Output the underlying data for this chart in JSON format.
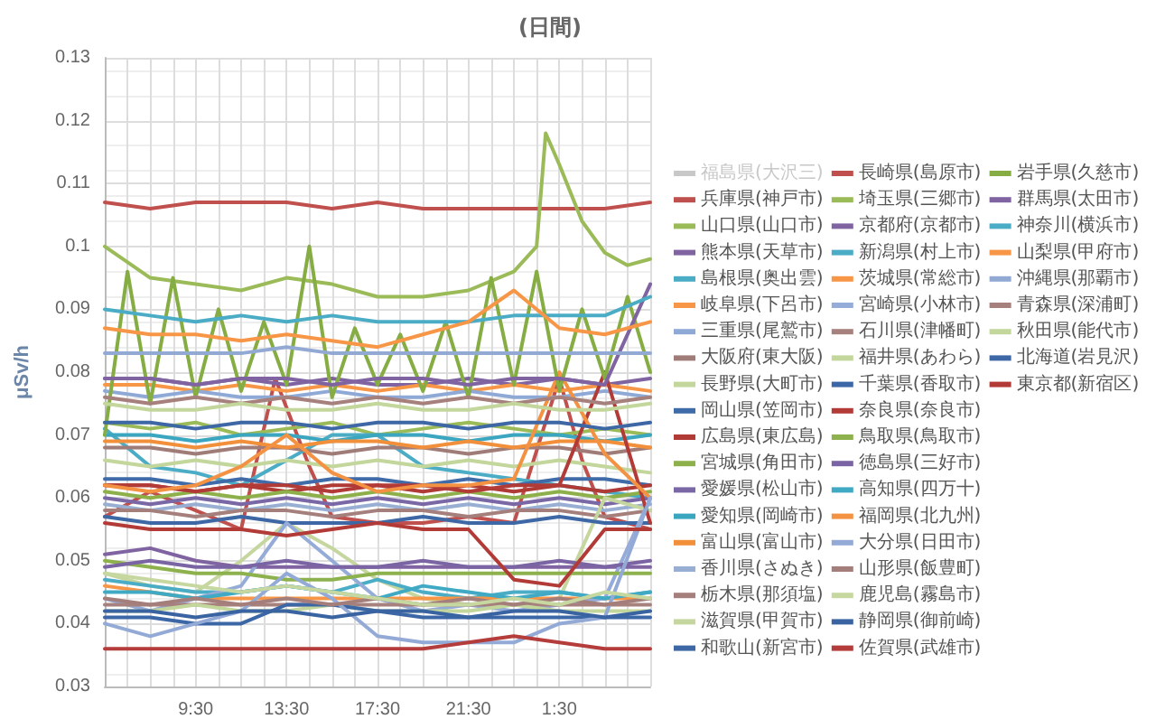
{
  "chart_data": {
    "type": "line",
    "title": "(日間)",
    "ylabel": "μSv/h",
    "marker": "none",
    "grid": true,
    "legend": "right",
    "x": [
      "--01-01T05:30",
      "--01-01T07:30",
      "--01-01T09:30",
      "--01-01T11:30",
      "--01-01T13:30",
      "--01-01T15:30",
      "--01-01T17:30",
      "--01-01T19:30",
      "--01-01T21:30",
      "--01-01T23:30",
      "--01-02T01:30",
      "--01-02T03:30",
      "--01-02T05:30"
    ],
    "xlim": [
      "--01-01T05:30",
      "--01-02T05:30"
    ],
    "xticks": [
      {
        "value": "--01-01T05:30",
        "label": null
      },
      {
        "value": "--01-01T06:30",
        "label": null
      },
      {
        "value": "--01-01T07:30",
        "label": null
      },
      {
        "value": "--01-01T08:30",
        "label": null
      },
      {
        "value": "--01-01T09:30",
        "label": "9:30"
      },
      {
        "value": "--01-01T10:30",
        "label": null
      },
      {
        "value": "--01-01T11:30",
        "label": null
      },
      {
        "value": "--01-01T12:30",
        "label": null
      },
      {
        "value": "--01-01T13:30",
        "label": "13:30"
      },
      {
        "value": "--01-01T14:30",
        "label": null
      },
      {
        "value": "--01-01T15:30",
        "label": null
      },
      {
        "value": "--01-01T16:30",
        "label": null
      },
      {
        "value": "--01-01T17:30",
        "label": "17:30"
      },
      {
        "value": "--01-01T18:30",
        "label": null
      },
      {
        "value": "--01-01T19:30",
        "label": null
      },
      {
        "value": "--01-01T20:30",
        "label": null
      },
      {
        "value": "--01-01T21:30",
        "label": "21:30"
      },
      {
        "value": "--01-01T22:30",
        "label": null
      },
      {
        "value": "--01-01T23:30",
        "label": null
      },
      {
        "value": "--01-02T00:30",
        "label": null
      },
      {
        "value": "--01-02T01:30",
        "label": "1:30"
      },
      {
        "value": "--01-02T02:30",
        "label": null
      },
      {
        "value": "--01-02T03:30",
        "label": null
      },
      {
        "value": "--01-02T04:30",
        "label": null
      },
      {
        "value": "--01-02T05:30",
        "label": null
      }
    ],
    "ylim": [
      0.03,
      0.13
    ],
    "yticks": [
      0.03,
      0.04,
      0.05,
      0.06,
      0.07,
      0.08,
      0.09,
      0.1,
      0.11,
      0.12,
      0.13
    ],
    "series": [
      {
        "name": "福島県(大沢三)",
        "color": "#bfbfbf",
        "values": [
          null,
          null,
          null,
          null,
          null,
          null,
          null,
          null,
          null,
          null,
          null,
          null,
          null
        ]
      },
      {
        "name": "兵庫県(神戸市)",
        "color": "#c0504d",
        "x": [
          "--01-01T05:30",
          "--01-01T07:30",
          "--01-01T09:30",
          "--01-01T11:30",
          "--01-01T13:00",
          "--01-01T14:30",
          "--01-01T15:30",
          "--01-01T17:30",
          "--01-01T19:30",
          "--01-01T21:30",
          "--01-01T23:30",
          "--01-02T01:30",
          "--01-02T02:30",
          "--01-02T03:30",
          "--01-02T04:30",
          "--01-02T05:30"
        ],
        "values": [
          0.057,
          0.061,
          0.058,
          0.055,
          0.079,
          0.065,
          0.057,
          0.056,
          0.056,
          0.057,
          0.056,
          0.079,
          0.066,
          0.057,
          0.056,
          0.055
        ]
      },
      {
        "name": "山口県(山口市)",
        "color": "#9bbb59",
        "values": [
          0.072,
          0.071,
          0.072,
          0.07,
          0.071,
          0.072,
          0.07,
          0.071,
          0.072,
          0.071,
          0.07,
          0.071,
          0.07
        ]
      },
      {
        "name": "熊本県(天草市)",
        "color": "#8064a2",
        "values": [
          0.079,
          0.079,
          0.078,
          0.079,
          0.078,
          0.079,
          0.078,
          0.078,
          0.079,
          0.078,
          0.079,
          0.078,
          0.079
        ]
      },
      {
        "name": "島根県(奥出雲)",
        "color": "#4bacc6",
        "values": [
          0.071,
          0.065,
          0.064,
          0.062,
          0.066,
          0.07,
          0.07,
          0.065,
          0.064,
          0.063,
          0.062,
          0.061,
          0.06
        ]
      },
      {
        "name": "岐阜県(下呂市)",
        "color": "#f79646",
        "values": [
          0.078,
          0.078,
          0.077,
          0.078,
          0.077,
          0.078,
          0.077,
          0.078,
          0.077,
          0.078,
          0.077,
          0.078,
          0.077
        ]
      },
      {
        "name": "三重県(尾鷲市)",
        "color": "#8fa9d6",
        "values": [
          0.077,
          0.076,
          0.077,
          0.076,
          0.076,
          0.077,
          0.076,
          0.076,
          0.077,
          0.076,
          0.076,
          0.077,
          0.076
        ]
      },
      {
        "name": "大阪府(東大阪)",
        "color": "#a07c78",
        "values": [
          0.068,
          0.068,
          0.067,
          0.068,
          0.068,
          0.067,
          0.068,
          0.068,
          0.067,
          0.068,
          0.068,
          0.067,
          0.068
        ]
      },
      {
        "name": "長野県(大町市)",
        "color": "#c3d69b",
        "values": [
          0.066,
          0.065,
          0.066,
          0.065,
          0.066,
          0.065,
          0.066,
          0.065,
          0.066,
          0.065,
          0.066,
          0.065,
          0.064
        ]
      },
      {
        "name": "岡山県(笠岡市)",
        "color": "#3f6ba9",
        "values": [
          0.063,
          0.063,
          0.062,
          0.063,
          0.062,
          0.063,
          0.063,
          0.062,
          0.063,
          0.062,
          0.063,
          0.063,
          0.062
        ]
      },
      {
        "name": "広島県(東広島)",
        "color": "#b03a36",
        "values": [
          0.062,
          0.062,
          0.061,
          0.062,
          0.061,
          0.062,
          0.062,
          0.061,
          0.062,
          0.061,
          0.062,
          0.061,
          0.062
        ]
      },
      {
        "name": "宮城県(角田市)",
        "color": "#8eb04a",
        "values": [
          0.061,
          0.06,
          0.061,
          0.06,
          0.061,
          0.06,
          0.061,
          0.06,
          0.061,
          0.06,
          0.061,
          0.06,
          0.061
        ]
      },
      {
        "name": "愛媛県(松山市)",
        "color": "#7a68a6",
        "values": [
          0.06,
          0.059,
          0.06,
          0.059,
          0.06,
          0.059,
          0.06,
          0.059,
          0.06,
          0.059,
          0.06,
          0.059,
          0.06
        ]
      },
      {
        "name": "愛知県(岡崎市)",
        "color": "#3ba6c0",
        "values": [
          0.07,
          0.07,
          0.069,
          0.07,
          0.07,
          0.069,
          0.07,
          0.07,
          0.069,
          0.07,
          0.07,
          0.069,
          0.07
        ]
      },
      {
        "name": "富山県(富山市)",
        "color": "#f28f3b",
        "values": [
          0.069,
          0.069,
          0.068,
          0.069,
          0.068,
          0.069,
          0.069,
          0.068,
          0.069,
          0.068,
          0.069,
          0.069,
          0.068
        ]
      },
      {
        "name": "香川県(さぬき)",
        "color": "#98afd3",
        "values": [
          0.059,
          0.058,
          0.059,
          0.058,
          0.059,
          0.058,
          0.059,
          0.058,
          0.059,
          0.058,
          0.059,
          0.058,
          0.059
        ]
      },
      {
        "name": "栃木県(那須塩)",
        "color": "#a47f7c",
        "values": [
          0.058,
          0.058,
          0.057,
          0.058,
          0.058,
          0.057,
          0.058,
          0.058,
          0.057,
          0.058,
          0.058,
          0.057,
          0.058
        ]
      },
      {
        "name": "滋賀県(甲賀市)",
        "color": "#c5d69e",
        "values": [
          0.048,
          0.046,
          0.045,
          0.05,
          0.056,
          0.052,
          0.047,
          0.044,
          0.043,
          0.043,
          0.044,
          0.06,
          0.058
        ]
      },
      {
        "name": "和歌山(新宮市)",
        "color": "#3d68a5",
        "values": [
          0.057,
          0.056,
          0.056,
          0.057,
          0.056,
          0.056,
          0.056,
          0.057,
          0.056,
          0.056,
          0.057,
          0.056,
          0.056
        ]
      },
      {
        "name": "長崎県(島原市)",
        "color": "#c0504d",
        "values": [
          0.107,
          0.106,
          0.107,
          0.107,
          0.107,
          0.106,
          0.107,
          0.106,
          0.106,
          0.106,
          0.106,
          0.106,
          0.107
        ]
      },
      {
        "name": "埼玉県(三郷市)",
        "color": "#9bbb59",
        "x": [
          "--01-01T05:30",
          "--01-01T07:30",
          "--01-01T09:30",
          "--01-01T11:30",
          "--01-01T13:30",
          "--01-01T15:30",
          "--01-01T17:30",
          "--01-01T19:30",
          "--01-01T21:30",
          "--01-01T23:30",
          "--01-02T00:30",
          "--01-02T00:54",
          "--01-02T01:30",
          "--01-02T02:30",
          "--01-02T03:30",
          "--01-02T04:30",
          "--01-02T05:30"
        ],
        "values": [
          0.1,
          0.095,
          0.094,
          0.093,
          0.095,
          0.094,
          0.092,
          0.092,
          0.093,
          0.096,
          0.1,
          0.118,
          0.113,
          0.104,
          0.099,
          0.097,
          0.098
        ]
      },
      {
        "name": "京都府(京都市)",
        "color": "#8064a2",
        "values": [
          0.051,
          0.052,
          0.05,
          0.049,
          0.049,
          0.049,
          0.049,
          0.049,
          0.049,
          0.049,
          0.049,
          0.049,
          0.049
        ]
      },
      {
        "name": "新潟県(村上市)",
        "color": "#4bacc6",
        "values": [
          0.047,
          0.046,
          0.045,
          0.045,
          0.046,
          0.045,
          0.047,
          0.045,
          0.044,
          0.045,
          0.045,
          0.044,
          0.045
        ]
      },
      {
        "name": "茨城県(常総市)",
        "color": "#f79646",
        "values": [
          0.046,
          0.045,
          0.044,
          0.044,
          0.044,
          0.044,
          0.044,
          0.044,
          0.044,
          0.044,
          0.044,
          0.044,
          0.044
        ]
      },
      {
        "name": "宮崎県(小林市)",
        "color": "#95abd8",
        "values": [
          0.044,
          0.042,
          0.044,
          0.046,
          0.056,
          0.05,
          0.044,
          0.042,
          0.043,
          0.042,
          0.043,
          0.044,
          0.06
        ]
      },
      {
        "name": "石川県(津幡町)",
        "color": "#a7817d",
        "values": [
          0.043,
          0.043,
          0.043,
          0.043,
          0.043,
          0.043,
          0.043,
          0.043,
          0.043,
          0.043,
          0.043,
          0.043,
          0.043
        ]
      },
      {
        "name": "福井県(あわら)",
        "color": "#c3d69b",
        "values": [
          0.042,
          0.042,
          0.043,
          0.042,
          0.042,
          0.043,
          0.042,
          0.042,
          0.042,
          0.043,
          0.042,
          0.042,
          0.042
        ]
      },
      {
        "name": "千葉県(香取市)",
        "color": "#3c67a6",
        "values": [
          0.041,
          0.041,
          0.04,
          0.04,
          0.043,
          0.043,
          0.042,
          0.041,
          0.041,
          0.041,
          0.041,
          0.041,
          0.041
        ]
      },
      {
        "name": "奈良県(奈良市)",
        "color": "#b23b38",
        "values": [
          0.062,
          0.062,
          0.061,
          0.062,
          0.062,
          0.061,
          0.062,
          0.062,
          0.061,
          0.062,
          0.062,
          0.08,
          0.056
        ]
      },
      {
        "name": "鳥取県(鳥取市)",
        "color": "#8db24d",
        "values": [
          0.05,
          0.049,
          0.048,
          0.048,
          0.047,
          0.047,
          0.048,
          0.048,
          0.048,
          0.048,
          0.048,
          0.048,
          0.048
        ]
      },
      {
        "name": "徳島県(三好市)",
        "color": "#7b64a3",
        "values": [
          0.049,
          0.05,
          0.049,
          0.049,
          0.05,
          0.049,
          0.049,
          0.05,
          0.049,
          0.049,
          0.05,
          0.049,
          0.05
        ]
      },
      {
        "name": "高知県(四万十)",
        "color": "#40a9c4",
        "values": [
          0.045,
          0.045,
          0.044,
          0.045,
          0.046,
          0.045,
          0.044,
          0.046,
          0.045,
          0.044,
          0.045,
          0.044,
          0.045
        ]
      },
      {
        "name": "福岡県(北九州)",
        "color": "#f39243",
        "values": [
          0.062,
          0.061,
          0.062,
          0.065,
          0.07,
          0.064,
          0.061,
          0.062,
          0.062,
          0.063,
          0.08,
          0.067,
          0.06
        ]
      },
      {
        "name": "大分県(日田市)",
        "color": "#93aad6",
        "values": [
          0.04,
          0.038,
          0.04,
          0.042,
          0.048,
          0.044,
          0.038,
          0.037,
          0.037,
          0.037,
          0.04,
          0.041,
          0.06
        ]
      },
      {
        "name": "山形県(飯豊町)",
        "color": "#a47e7b",
        "values": [
          0.044,
          0.043,
          0.044,
          0.043,
          0.044,
          0.043,
          0.044,
          0.043,
          0.044,
          0.043,
          0.044,
          0.043,
          0.044
        ]
      },
      {
        "name": "鹿児島(霧島市)",
        "color": "#c6d8a0",
        "values": [
          0.048,
          0.047,
          0.046,
          0.045,
          0.046,
          0.045,
          0.044,
          0.043,
          0.043,
          0.044,
          0.043,
          0.045,
          0.044
        ]
      },
      {
        "name": "静岡県(御前崎)",
        "color": "#3a63a2",
        "values": [
          0.042,
          0.042,
          0.041,
          0.042,
          0.042,
          0.041,
          0.042,
          0.042,
          0.041,
          0.042,
          0.042,
          0.041,
          0.042
        ]
      },
      {
        "name": "佐賀県(武雄市)",
        "color": "#b43c3a",
        "values": [
          0.036,
          0.036,
          0.036,
          0.036,
          0.036,
          0.036,
          0.036,
          0.036,
          0.037,
          0.038,
          0.037,
          0.036,
          0.036
        ]
      },
      {
        "name": "岩手県(久慈市)",
        "color": "#86ad43",
        "x": [
          "--01-01T05:30",
          "--01-01T06:30",
          "--01-01T07:30",
          "--01-01T08:30",
          "--01-01T09:30",
          "--01-01T10:30",
          "--01-01T11:30",
          "--01-01T12:30",
          "--01-01T13:30",
          "--01-01T14:30",
          "--01-01T15:30",
          "--01-01T16:30",
          "--01-01T17:30",
          "--01-01T18:30",
          "--01-01T19:30",
          "--01-01T20:30",
          "--01-01T21:30",
          "--01-01T22:30",
          "--01-01T23:30",
          "--01-02T00:30",
          "--01-02T01:30",
          "--01-02T02:30",
          "--01-02T03:30",
          "--01-02T04:30",
          "--01-02T05:30"
        ],
        "values": [
          0.07,
          0.096,
          0.075,
          0.095,
          0.076,
          0.09,
          0.077,
          0.088,
          0.078,
          0.1,
          0.076,
          0.087,
          0.078,
          0.086,
          0.077,
          0.088,
          0.076,
          0.095,
          0.078,
          0.096,
          0.077,
          0.09,
          0.079,
          0.092,
          0.08
        ]
      },
      {
        "name": "群馬県(太田市)",
        "color": "#8064a2",
        "values": [
          0.079,
          0.079,
          0.078,
          0.079,
          0.079,
          0.078,
          0.079,
          0.079,
          0.078,
          0.079,
          0.079,
          0.078,
          0.094
        ]
      },
      {
        "name": "神奈川(横浜市)",
        "color": "#4bacc6",
        "values": [
          0.09,
          0.089,
          0.088,
          0.089,
          0.088,
          0.089,
          0.088,
          0.088,
          0.088,
          0.089,
          0.089,
          0.089,
          0.092
        ]
      },
      {
        "name": "山梨県(甲府市)",
        "color": "#f79646",
        "values": [
          0.087,
          0.086,
          0.086,
          0.085,
          0.086,
          0.085,
          0.084,
          0.086,
          0.088,
          0.093,
          0.087,
          0.086,
          0.088
        ]
      },
      {
        "name": "沖縄県(那覇市)",
        "color": "#92a9d4",
        "values": [
          0.083,
          0.083,
          0.083,
          0.083,
          0.084,
          0.083,
          0.083,
          0.083,
          0.083,
          0.083,
          0.083,
          0.083,
          0.083
        ]
      },
      {
        "name": "青森県(深浦町)",
        "color": "#a5807c",
        "values": [
          0.076,
          0.075,
          0.076,
          0.075,
          0.076,
          0.075,
          0.076,
          0.075,
          0.076,
          0.075,
          0.076,
          0.075,
          0.076
        ]
      },
      {
        "name": "秋田県(能代市)",
        "color": "#c3d69b",
        "values": [
          0.075,
          0.074,
          0.074,
          0.075,
          0.074,
          0.074,
          0.075,
          0.074,
          0.074,
          0.075,
          0.074,
          0.074,
          0.075
        ]
      },
      {
        "name": "北海道(岩見沢)",
        "color": "#3d68a5",
        "values": [
          0.072,
          0.072,
          0.071,
          0.072,
          0.072,
          0.071,
          0.072,
          0.072,
          0.071,
          0.072,
          0.072,
          0.071,
          0.072
        ]
      },
      {
        "name": "東京都(新宿区)",
        "color": "#b23b38",
        "values": [
          0.056,
          0.055,
          0.055,
          0.055,
          0.054,
          0.055,
          0.056,
          0.055,
          0.055,
          0.047,
          0.046,
          0.055,
          0.055
        ]
      }
    ]
  }
}
